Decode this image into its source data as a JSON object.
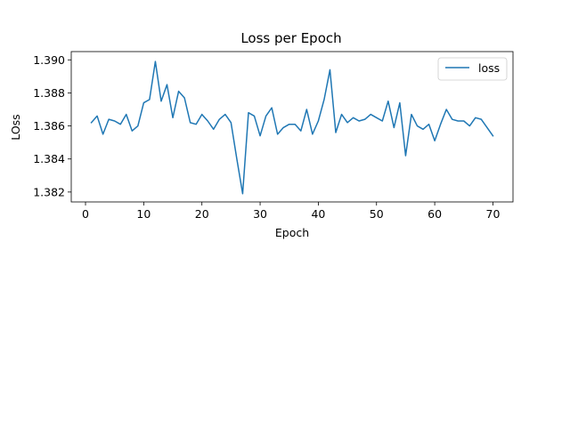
{
  "chart_data": {
    "type": "line",
    "title": "Loss per Epoch",
    "xlabel": "Epoch",
    "ylabel": "LOss",
    "xlim": [
      -2.45,
      73.45
    ],
    "ylim": [
      1.3814,
      1.3905
    ],
    "xticks": [
      0,
      10,
      20,
      30,
      40,
      50,
      60,
      70
    ],
    "xtick_labels": [
      "0",
      "10",
      "20",
      "30",
      "40",
      "50",
      "60",
      "70"
    ],
    "yticks": [
      1.382,
      1.384,
      1.386,
      1.388,
      1.39
    ],
    "ytick_labels": [
      "1.382",
      "1.384",
      "1.386",
      "1.388",
      "1.390"
    ],
    "grid": false,
    "legend_position": "top-right",
    "series": [
      {
        "name": "loss",
        "color": "#1f77b4",
        "x": [
          1,
          2,
          3,
          4,
          5,
          6,
          7,
          8,
          9,
          10,
          11,
          12,
          13,
          14,
          15,
          16,
          17,
          18,
          19,
          20,
          21,
          22,
          23,
          24,
          25,
          26,
          27,
          28,
          29,
          30,
          31,
          32,
          33,
          34,
          35,
          36,
          37,
          38,
          39,
          40,
          41,
          42,
          43,
          44,
          45,
          46,
          47,
          48,
          49,
          50,
          51,
          52,
          53,
          54,
          55,
          56,
          57,
          58,
          59,
          60,
          61,
          62,
          63,
          64,
          65,
          66,
          67,
          68,
          69,
          70
        ],
        "y": [
          1.3862,
          1.3866,
          1.3855,
          1.3864,
          1.3863,
          1.3861,
          1.3867,
          1.3857,
          1.386,
          1.3874,
          1.3876,
          1.3899,
          1.3875,
          1.3885,
          1.3865,
          1.3881,
          1.3877,
          1.3862,
          1.3861,
          1.3867,
          1.3863,
          1.3858,
          1.3864,
          1.3867,
          1.3862,
          1.384,
          1.3819,
          1.3868,
          1.3866,
          1.3854,
          1.3866,
          1.3871,
          1.3855,
          1.3859,
          1.3861,
          1.3861,
          1.3857,
          1.387,
          1.3855,
          1.3863,
          1.3876,
          1.3894,
          1.3856,
          1.3867,
          1.3862,
          1.3865,
          1.3863,
          1.3864,
          1.3867,
          1.3865,
          1.3863,
          1.3875,
          1.3859,
          1.3874,
          1.3842,
          1.3867,
          1.386,
          1.3858,
          1.3861,
          1.3851,
          1.3861,
          1.387,
          1.3864,
          1.3863,
          1.3863,
          1.386,
          1.3865,
          1.3864,
          1.3859,
          1.3854
        ]
      }
    ]
  }
}
